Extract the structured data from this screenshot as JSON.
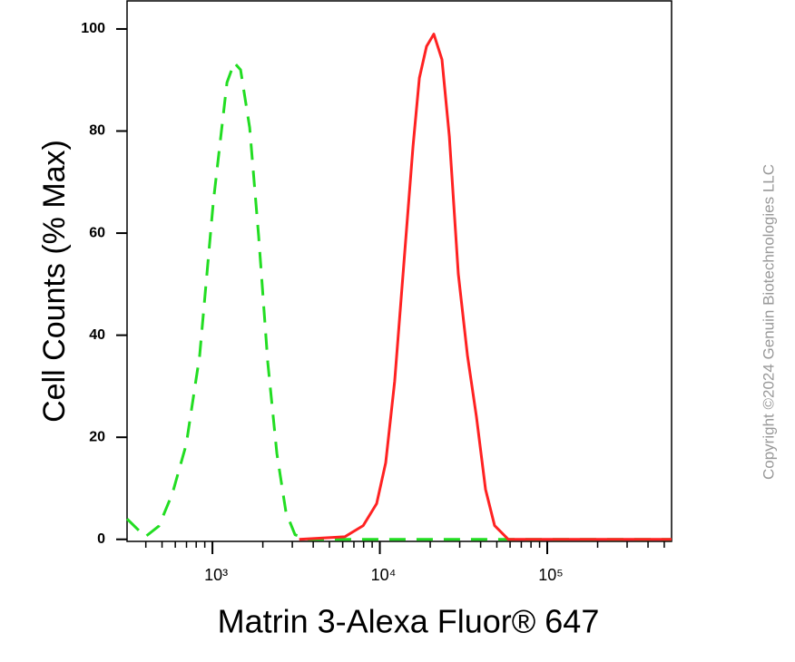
{
  "chart_data": {
    "type": "histogram-overlay",
    "xlabel": "Matrin 3-Alexa Fluor® 647",
    "ylabel": "Cell Counts (% Max)",
    "watermark": "Copyright ©2024 Genuin Biotechnologies LLC",
    "xscale": "log",
    "xlim": [
      309,
      553000
    ],
    "ylim": [
      -0.4,
      105.5
    ],
    "xticks": [
      {
        "value": 1000,
        "label": "10³"
      },
      {
        "value": 10000,
        "label": "10⁴"
      },
      {
        "value": 100000,
        "label": "10⁵"
      }
    ],
    "xminorticks": [
      400,
      500,
      600,
      700,
      800,
      900,
      2000,
      3000,
      4000,
      5000,
      6000,
      7000,
      8000,
      9000,
      20000,
      30000,
      40000,
      50000,
      60000,
      70000,
      80000,
      90000,
      200000,
      300000,
      400000,
      500000
    ],
    "yticks": [
      0,
      20,
      40,
      60,
      80,
      100
    ],
    "series": [
      {
        "color": "#22dd22",
        "dashed": true,
        "x": [
          309,
          397,
          479,
          577,
          697,
          839,
          1012,
          1221,
          1349,
          1472,
          1668,
          1889,
          2142,
          2427,
          2750,
          3114,
          3758,
          10000,
          100000,
          553000
        ],
        "values": [
          4,
          0.5,
          2.6,
          9,
          18.6,
          36,
          66,
          89.5,
          93.4,
          92,
          80.7,
          59.4,
          34.6,
          16.8,
          5.3,
          0.9,
          0,
          0,
          0,
          0
        ]
      },
      {
        "color": "#ff2222",
        "dashed": false,
        "x": [
          3300,
          6180,
          7950,
          9570,
          10840,
          12270,
          13920,
          15780,
          17220,
          19020,
          21000,
          23490,
          25990,
          29440,
          33360,
          37780,
          42790,
          48490,
          58480,
          553000
        ],
        "values": [
          0,
          0.5,
          2.7,
          7,
          15,
          31,
          54,
          77,
          90.4,
          96.6,
          99,
          94,
          79,
          52,
          36,
          24,
          9.8,
          2.7,
          0,
          0
        ]
      }
    ]
  }
}
